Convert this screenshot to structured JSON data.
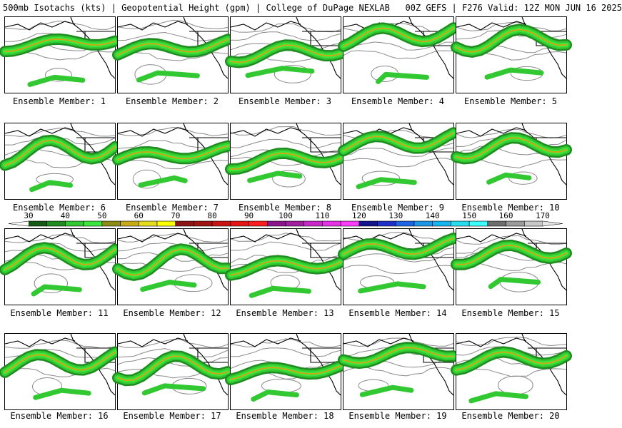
{
  "title": "500mb Isotachs (kts) | Geopotential Height (gpm) | College of DuPage NEXLAB   00Z GEFS | F276 Valid: 12Z MON JUN 16 2025",
  "panel_label_prefix": "Ensemble Member: ",
  "members": [
    "1",
    "2",
    "3",
    "4",
    "5",
    "6",
    "7",
    "8",
    "9",
    "10",
    "11",
    "12",
    "13",
    "14",
    "15",
    "16",
    "17",
    "18",
    "19",
    "20"
  ],
  "colorbar": {
    "labels": [
      "30",
      "40",
      "50",
      "60",
      "70",
      "80",
      "90",
      "100",
      "110",
      "120",
      "130",
      "140",
      "150",
      "160",
      "170"
    ],
    "colors": [
      "#145a14",
      "#1e8c1e",
      "#32c832",
      "#3ce63c",
      "#8c8c14",
      "#c8aa14",
      "#e6dc1e",
      "#ffff00",
      "#8c1414",
      "#a01414",
      "#c81414",
      "#e61414",
      "#ff1e1e",
      "#8c148c",
      "#a01ea0",
      "#c828c8",
      "#e632e6",
      "#ff3cff",
      "#14148c",
      "#1e32c8",
      "#1e64e6",
      "#1e96e6",
      "#14b4f0",
      "#28dcf0",
      "#3cffff",
      "#6e6e6e",
      "#9a9a9a",
      "#c8c8c8"
    ]
  }
}
